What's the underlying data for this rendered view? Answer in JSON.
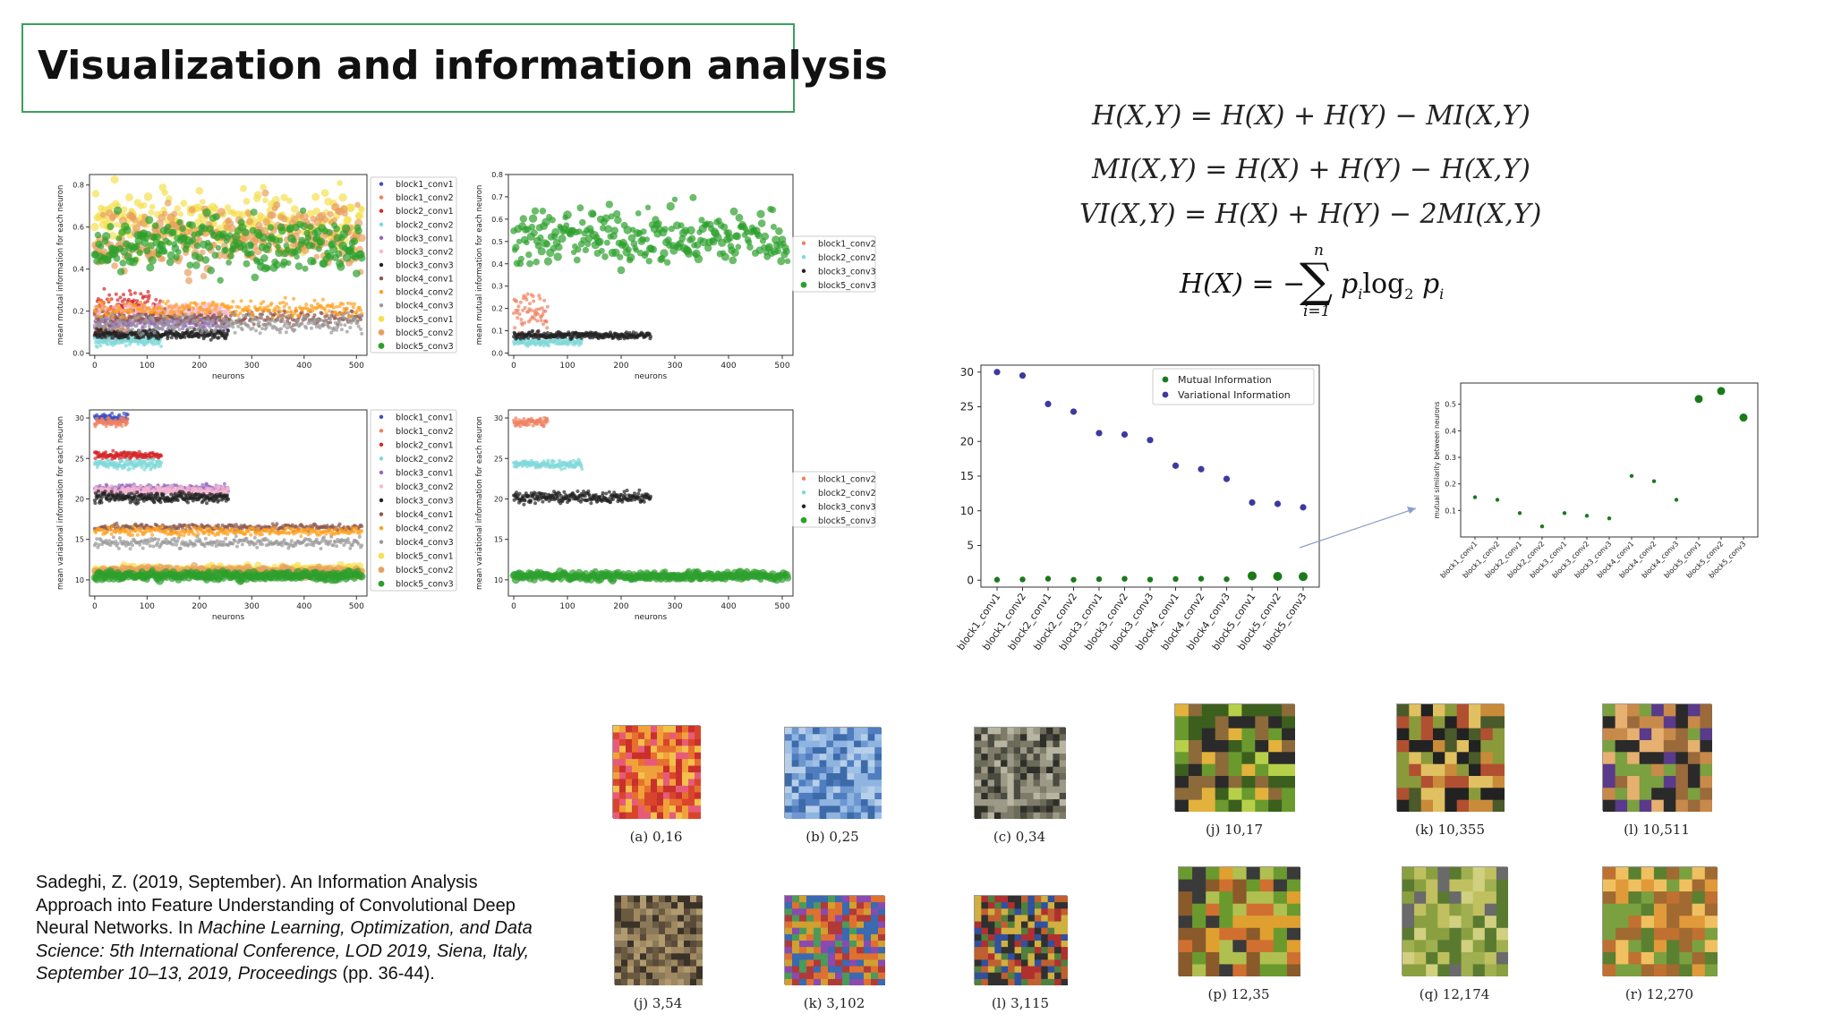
{
  "slide": {
    "title": "Visualization and information analysis",
    "equations": {
      "eq1": "H(X,Y) = H(X) + H(Y) − MI(X,Y)",
      "eq2": "MI(X,Y) = H(X) + H(Y) − H(X,Y)",
      "eq3": "VI(X,Y) = H(X) + H(Y) − 2MI(X,Y)",
      "eq4_lhs": "H(X) = −",
      "eq4_sum_upper": "n",
      "eq4_sum_lower": "i=1",
      "eq4_term": "p",
      "eq4_term_sub": "i",
      "eq4_log": "log",
      "eq4_log_sub": "2",
      "eq4_term2": "p",
      "eq4_term2_sub": "i"
    },
    "citation": {
      "part1": "Sadeghi, Z. (2019, September). An Information Analysis Approach into Feature Understanding of Convolutional Deep Neural Networks. In ",
      "part2": "Machine Learning, Optimization, and Data Science: 5th International Conference, LOD 2019, Siena, Italy, September 10–13, 2019, Proceedings",
      "part3": " (pp. 36-44)."
    },
    "thumbnails": [
      {
        "caption": "(a) 0,16",
        "palette": [
          "#d9452b",
          "#e8702f",
          "#f0a23a",
          "#c9302c",
          "#f3c14b",
          "#e85a7a"
        ]
      },
      {
        "caption": "(b) 0,25",
        "palette": [
          "#8fb4e0",
          "#6d97d1",
          "#b7cfe9",
          "#4f7dbf",
          "#9fc1e7",
          "#3d6aa8"
        ]
      },
      {
        "caption": "(c) 0,34",
        "palette": [
          "#6b6b5a",
          "#9c9a87",
          "#4a4a40",
          "#b8b5a2",
          "#7e7b69",
          "#2f2f29"
        ]
      },
      {
        "caption": "(j) 10,17",
        "palette": [
          "#6a9a2e",
          "#b7d04a",
          "#3c5f1e",
          "#e3b23c",
          "#2a2a2a",
          "#8c6a3a"
        ]
      },
      {
        "caption": "(k) 10,355",
        "palette": [
          "#8a9a3a",
          "#c98a3a",
          "#4a5a2a",
          "#e0c060",
          "#222222",
          "#b05030"
        ]
      },
      {
        "caption": "(l) 10,511",
        "palette": [
          "#5a3a8a",
          "#c88a4a",
          "#7aa040",
          "#e6b070",
          "#2a2a2a",
          "#9a6a3a"
        ]
      },
      {
        "caption": "(j) 3,54",
        "palette": [
          "#8a7a5a",
          "#5a4a3a",
          "#b09a70",
          "#3a3228",
          "#a08860",
          "#6a5a40"
        ]
      },
      {
        "caption": "(k) 3,102",
        "palette": [
          "#3a6ab0",
          "#d0a030",
          "#b03a3a",
          "#4a9a5a",
          "#8a4ab0",
          "#e07030"
        ]
      },
      {
        "caption": "(l) 3,115",
        "palette": [
          "#b03030",
          "#3050a0",
          "#d0b040",
          "#303030",
          "#c06030",
          "#508040"
        ]
      },
      {
        "caption": "(p) 12,35",
        "palette": [
          "#6a9a2e",
          "#e0a030",
          "#3a3a3a",
          "#b0c050",
          "#8a5a2a",
          "#d07030"
        ]
      },
      {
        "caption": "(q) 12,174",
        "palette": [
          "#8aa040",
          "#c0c060",
          "#6a6a6a",
          "#a0b050",
          "#5a7a30",
          "#d0d080"
        ]
      },
      {
        "caption": "(r) 12,270",
        "palette": [
          "#e09a3a",
          "#7aa040",
          "#c07030",
          "#f0c060",
          "#5a8030",
          "#a06a30"
        ]
      }
    ]
  },
  "colors": {
    "accent_border": "#3aa05a",
    "mi_marker": "#1a7a1a",
    "vi_marker": "#3b3b9e"
  },
  "chart_data": [
    {
      "id": "mi_all",
      "type": "scatter",
      "title": "",
      "xlabel": "neurons",
      "ylabel": "mean mutual information for each neuron",
      "xlim": [
        -10,
        520
      ],
      "ylim": [
        -0.01,
        0.85
      ],
      "xticks": [
        0,
        100,
        200,
        300,
        400,
        500
      ],
      "yticks": [
        0.0,
        0.2,
        0.4,
        0.6,
        0.8
      ],
      "ytick_labels": [
        "0.0",
        "0.2",
        "0.4",
        "0.6",
        "0.8"
      ],
      "legend_position": "right",
      "series": [
        {
          "name": "block1_conv1",
          "color": "#3b4cc0",
          "n": 64,
          "ymean": 0.08,
          "yspread": 0.02
        },
        {
          "name": "block1_conv2",
          "color": "#f08060",
          "n": 64,
          "ymean": 0.1,
          "yspread": 0.03
        },
        {
          "name": "block2_conv1",
          "color": "#d62728",
          "n": 128,
          "ymean": 0.22,
          "yspread": 0.06
        },
        {
          "name": "block2_conv2",
          "color": "#80d8d8",
          "n": 128,
          "ymean": 0.06,
          "yspread": 0.02
        },
        {
          "name": "block3_conv1",
          "color": "#9467bd",
          "n": 256,
          "ymean": 0.15,
          "yspread": 0.03
        },
        {
          "name": "block3_conv2",
          "color": "#f7b6d2",
          "n": 256,
          "ymean": 0.2,
          "yspread": 0.03
        },
        {
          "name": "block3_conv3",
          "color": "#222222",
          "n": 256,
          "ymean": 0.09,
          "yspread": 0.02
        },
        {
          "name": "block4_conv1",
          "color": "#8c564b",
          "n": 512,
          "ymean": 0.17,
          "yspread": 0.03
        },
        {
          "name": "block4_conv2",
          "color": "#ff9f1c",
          "n": 512,
          "ymean": 0.21,
          "yspread": 0.04
        },
        {
          "name": "block4_conv3",
          "color": "#999999",
          "n": 512,
          "ymean": 0.14,
          "yspread": 0.04
        },
        {
          "name": "block5_conv1",
          "color": "#f5e050",
          "n": 512,
          "ymean": 0.62,
          "yspread": 0.14
        },
        {
          "name": "block5_conv2",
          "color": "#e8a060",
          "n": 512,
          "ymean": 0.55,
          "yspread": 0.14
        },
        {
          "name": "block5_conv3",
          "color": "#2ca02c",
          "n": 512,
          "ymean": 0.52,
          "yspread": 0.12
        }
      ]
    },
    {
      "id": "mi_last",
      "type": "scatter",
      "title": "",
      "xlabel": "neurons",
      "ylabel": "mean mutual information for each neuron",
      "xlim": [
        -10,
        520
      ],
      "ylim": [
        -0.01,
        0.8
      ],
      "xticks": [
        0,
        100,
        200,
        300,
        400,
        500
      ],
      "yticks": [
        0.0,
        0.1,
        0.2,
        0.3,
        0.4,
        0.5,
        0.6,
        0.7,
        0.8
      ],
      "ytick_labels": [
        "0.0",
        "0.1",
        "0.2",
        "0.3",
        "0.4",
        "0.5",
        "0.6",
        "0.7",
        "0.8"
      ],
      "legend_position": "right",
      "series": [
        {
          "name": "block1_conv2",
          "color": "#f08060",
          "n": 64,
          "ymean": 0.18,
          "yspread": 0.09
        },
        {
          "name": "block2_conv2",
          "color": "#80d8d8",
          "n": 128,
          "ymean": 0.05,
          "yspread": 0.015
        },
        {
          "name": "block3_conv3",
          "color": "#222222",
          "n": 256,
          "ymean": 0.08,
          "yspread": 0.015
        },
        {
          "name": "block5_conv3",
          "color": "#2ca02c",
          "n": 512,
          "ymean": 0.52,
          "yspread": 0.12
        }
      ]
    },
    {
      "id": "vi_all",
      "type": "scatter",
      "title": "",
      "xlabel": "neurons",
      "ylabel": "mean variational information for each neuron",
      "xlim": [
        -10,
        520
      ],
      "ylim": [
        8,
        31
      ],
      "xticks": [
        0,
        100,
        200,
        300,
        400,
        500
      ],
      "yticks": [
        10,
        15,
        20,
        25,
        30
      ],
      "ytick_labels": [
        "10",
        "15",
        "20",
        "25",
        "30"
      ],
      "legend_position": "right",
      "series": [
        {
          "name": "block1_conv1",
          "color": "#3b4cc0",
          "n": 64,
          "ymean": 30.0,
          "yspread": 0.5
        },
        {
          "name": "block1_conv2",
          "color": "#f08060",
          "n": 64,
          "ymean": 29.5,
          "yspread": 0.5
        },
        {
          "name": "block2_conv1",
          "color": "#d62728",
          "n": 128,
          "ymean": 25.4,
          "yspread": 0.4
        },
        {
          "name": "block2_conv2",
          "color": "#80d8d8",
          "n": 128,
          "ymean": 24.3,
          "yspread": 0.5
        },
        {
          "name": "block3_conv1",
          "color": "#9467bd",
          "n": 256,
          "ymean": 21.2,
          "yspread": 0.5
        },
        {
          "name": "block3_conv2",
          "color": "#f7b6d2",
          "n": 256,
          "ymean": 21.0,
          "yspread": 0.5
        },
        {
          "name": "block3_conv3",
          "color": "#222222",
          "n": 256,
          "ymean": 20.2,
          "yspread": 0.6
        },
        {
          "name": "block4_conv1",
          "color": "#8c564b",
          "n": 512,
          "ymean": 16.5,
          "yspread": 0.4
        },
        {
          "name": "block4_conv2",
          "color": "#ff9f1c",
          "n": 512,
          "ymean": 16.0,
          "yspread": 0.5
        },
        {
          "name": "block4_conv3",
          "color": "#999999",
          "n": 512,
          "ymean": 14.6,
          "yspread": 0.6
        },
        {
          "name": "block5_conv1",
          "color": "#f5e050",
          "n": 512,
          "ymean": 11.2,
          "yspread": 0.5
        },
        {
          "name": "block5_conv2",
          "color": "#e8a060",
          "n": 512,
          "ymean": 11.0,
          "yspread": 0.5
        },
        {
          "name": "block5_conv3",
          "color": "#2ca02c",
          "n": 512,
          "ymean": 10.5,
          "yspread": 0.5
        }
      ]
    },
    {
      "id": "vi_last",
      "type": "scatter",
      "title": "",
      "xlabel": "neurons",
      "ylabel": "mean variational information for each neuron",
      "xlim": [
        -10,
        520
      ],
      "ylim": [
        8,
        31
      ],
      "xticks": [
        0,
        100,
        200,
        300,
        400,
        500
      ],
      "yticks": [
        10,
        15,
        20,
        25,
        30
      ],
      "ytick_labels": [
        "10",
        "15",
        "20",
        "25",
        "30"
      ],
      "legend_position": "right",
      "series": [
        {
          "name": "block1_conv2",
          "color": "#f08060",
          "n": 64,
          "ymean": 29.5,
          "yspread": 0.5
        },
        {
          "name": "block2_conv2",
          "color": "#80d8d8",
          "n": 128,
          "ymean": 24.3,
          "yspread": 0.5
        },
        {
          "name": "block3_conv3",
          "color": "#222222",
          "n": 256,
          "ymean": 20.2,
          "yspread": 0.6
        },
        {
          "name": "block5_conv3",
          "color": "#2ca02c",
          "n": 512,
          "ymean": 10.5,
          "yspread": 0.5
        }
      ]
    },
    {
      "id": "mi_vi_layers",
      "type": "scatter",
      "title": "",
      "xlabel": "",
      "ylabel": "",
      "ylim": [
        -1,
        31
      ],
      "yticks": [
        0,
        5,
        10,
        15,
        20,
        25,
        30
      ],
      "ytick_labels": [
        "0",
        "5",
        "10",
        "15",
        "20",
        "25",
        "30"
      ],
      "legend_position": "top-right",
      "categories": [
        "block1_conv1",
        "block1_conv2",
        "block2_conv1",
        "block2_conv2",
        "block3_conv1",
        "block3_conv2",
        "block3_conv3",
        "block4_conv1",
        "block4_conv2",
        "block4_conv3",
        "block5_conv1",
        "block5_conv2",
        "block5_conv3"
      ],
      "series": [
        {
          "name": "Mutual Information",
          "color": "#1a7a1a",
          "values": [
            0.07,
            0.1,
            0.21,
            0.06,
            0.15,
            0.2,
            0.09,
            0.17,
            0.21,
            0.14,
            0.62,
            0.55,
            0.52
          ]
        },
        {
          "name": "Variational Information",
          "color": "#3b3b9e",
          "values": [
            30.0,
            29.5,
            25.4,
            24.3,
            21.2,
            21.0,
            20.2,
            16.5,
            16.0,
            14.6,
            11.2,
            11.0,
            10.5
          ]
        }
      ]
    },
    {
      "id": "similarity_layers",
      "type": "scatter",
      "title": "",
      "xlabel": "",
      "ylabel": "mutual similarity between neurons",
      "ylim": [
        0.0,
        0.58
      ],
      "yticks": [
        0.1,
        0.2,
        0.3,
        0.4,
        0.5
      ],
      "ytick_labels": [
        "0.1",
        "0.2",
        "0.3",
        "0.4",
        "0.5"
      ],
      "categories": [
        "block1_conv1",
        "block1_conv2",
        "block2_conv1",
        "block2_conv2",
        "block3_conv1",
        "block3_conv2",
        "block3_conv3",
        "block4_conv1",
        "block4_conv2",
        "block4_conv3",
        "block5_conv1",
        "block5_conv2",
        "block5_conv3"
      ],
      "series": [
        {
          "name": "",
          "color": "#1a7a1a",
          "values": [
            0.15,
            0.14,
            0.09,
            0.04,
            0.09,
            0.08,
            0.07,
            0.23,
            0.21,
            0.14,
            0.52,
            0.55,
            0.45
          ]
        }
      ]
    }
  ]
}
